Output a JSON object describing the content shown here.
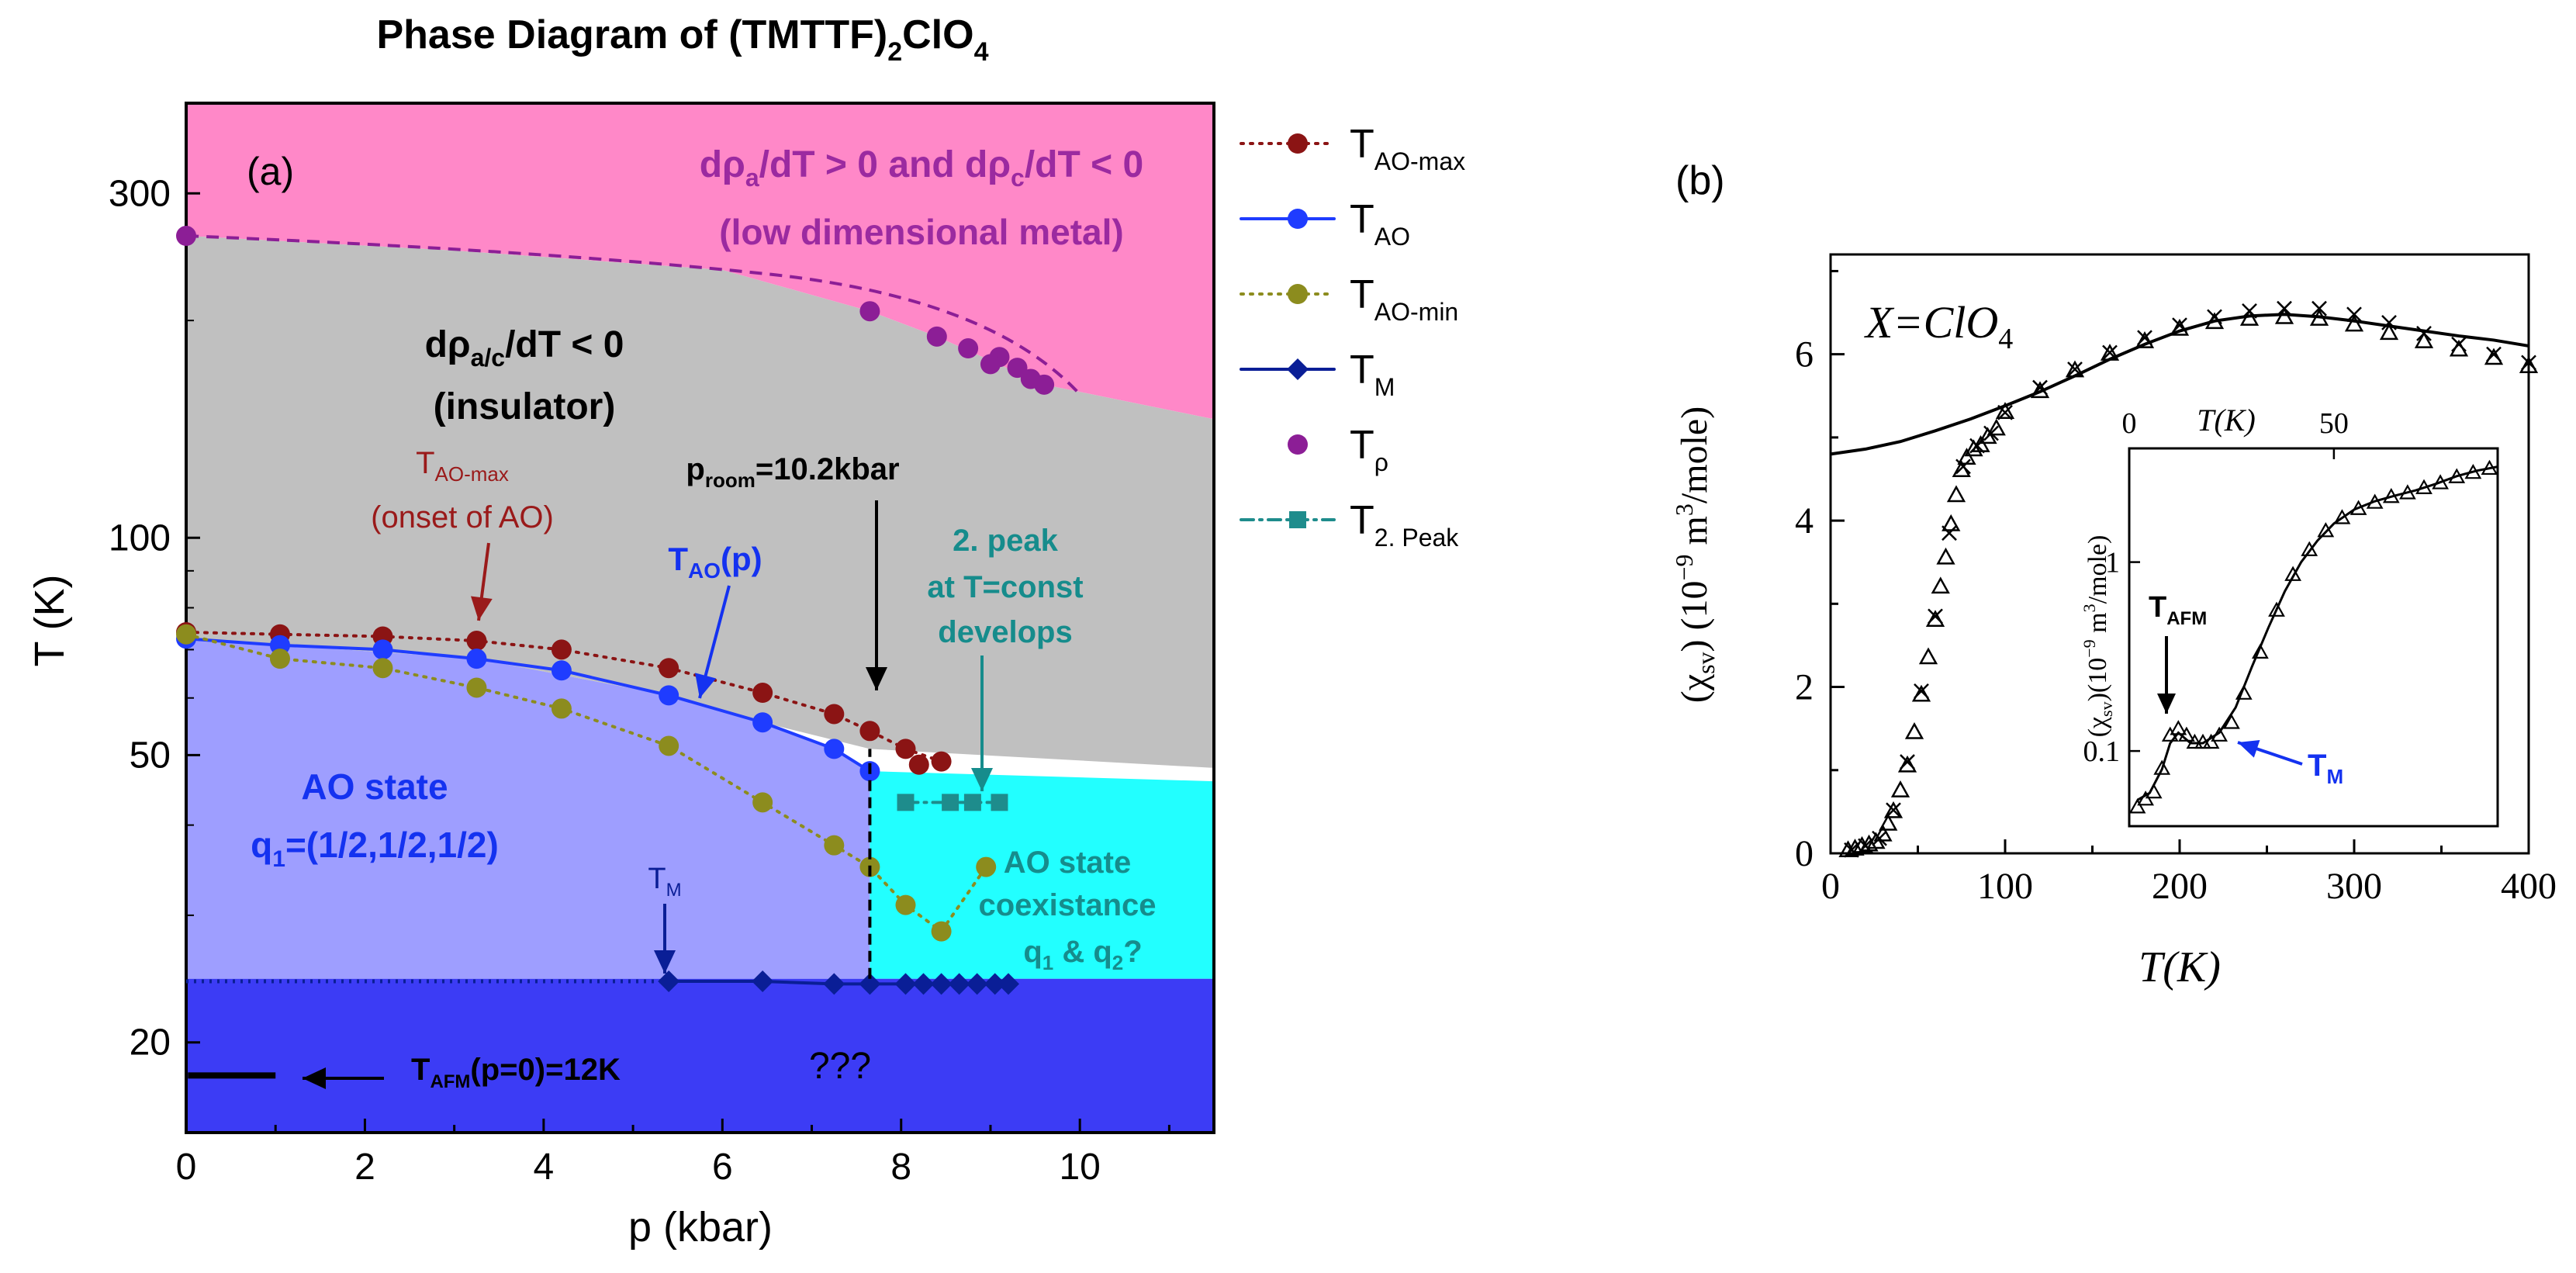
{
  "colors": {
    "metal": "#ff88c8",
    "insulator": "#c0c0c0",
    "ao_state": "#9e9eff",
    "coexist": "#22ffff",
    "afm": "#3c3cf5",
    "ao_max": "#8b1414",
    "ao": "#1f3cff",
    "ao_min": "#8c8c1e",
    "tm": "#0a1e96",
    "trho": "#8c1e96",
    "t2peak": "#1e8c8c",
    "metal_text": "#9b2aa0",
    "ao_text": "#1432f0",
    "teal_text": "#168c8c",
    "red_text": "#9a1a1a"
  },
  "chart_data": [
    {
      "id": "a",
      "type": "scatter",
      "panel_label": "(a)",
      "title": {
        "main": "Phase Diagram of (TMTTF)",
        "sub1": "2",
        "mid": "ClO",
        "sub2": "4"
      },
      "xlabel": "p (kbar)",
      "ylabel": "T (K)",
      "xlim": [
        0,
        11.5
      ],
      "ylim": [
        15,
        400
      ],
      "yscale": "log",
      "xticks": [
        0,
        2,
        4,
        6,
        8,
        10
      ],
      "yticks": [
        20,
        50,
        100,
        300
      ],
      "series": [
        {
          "key": "ao_max",
          "name": "T",
          "sub": "AO-max",
          "line": "dotted",
          "marker": "circle",
          "points": [
            [
              0,
              74
            ],
            [
              1.05,
              73.5
            ],
            [
              2.2,
              73
            ],
            [
              3.25,
              72
            ],
            [
              4.2,
              70
            ],
            [
              5.4,
              66
            ],
            [
              6.45,
              61
            ],
            [
              7.25,
              57
            ],
            [
              7.65,
              54
            ],
            [
              8.05,
              51
            ],
            [
              8.45,
              49
            ],
            [
              8.2,
              48.5
            ]
          ]
        },
        {
          "key": "ao",
          "name": "T",
          "sub": "AO",
          "line": "solid",
          "marker": "circle",
          "points": [
            [
              0,
              72.5
            ],
            [
              1.05,
              71
            ],
            [
              2.2,
              70
            ],
            [
              3.25,
              68
            ],
            [
              4.2,
              65.5
            ],
            [
              5.4,
              60.5
            ],
            [
              6.45,
              55.5
            ],
            [
              7.25,
              51
            ],
            [
              7.65,
              47.5
            ]
          ]
        },
        {
          "key": "ao_min",
          "name": "T",
          "sub": "AO-min",
          "line": "dotted",
          "marker": "circle",
          "points": [
            [
              0,
              73.5
            ],
            [
              1.05,
              68
            ],
            [
              2.2,
              66
            ],
            [
              3.25,
              62
            ],
            [
              4.2,
              58
            ],
            [
              5.4,
              51.5
            ],
            [
              6.45,
              43
            ],
            [
              7.25,
              37.5
            ],
            [
              7.65,
              35
            ],
            [
              8.05,
              31
            ],
            [
              8.45,
              28.5
            ],
            [
              8.95,
              35
            ]
          ]
        },
        {
          "key": "tm",
          "name": "T",
          "sub": "M",
          "line": "solid",
          "marker": "diamond",
          "points": [
            [
              5.4,
              24.3
            ],
            [
              6.45,
              24.3
            ],
            [
              7.25,
              24.1
            ],
            [
              7.65,
              24.1
            ],
            [
              8.05,
              24.1
            ],
            [
              8.25,
              24.1
            ],
            [
              8.45,
              24.1
            ],
            [
              8.65,
              24.1
            ],
            [
              8.85,
              24.1
            ],
            [
              9.05,
              24.1
            ],
            [
              9.2,
              24.1
            ]
          ]
        },
        {
          "key": "trho",
          "name": "T",
          "sub": "ρ",
          "line": "none",
          "marker": "circle",
          "points": [
            [
              0,
              262
            ],
            [
              7.65,
              206
            ],
            [
              8.4,
              190
            ],
            [
              8.75,
              183
            ],
            [
              9.1,
              178
            ],
            [
              9.3,
              172
            ],
            [
              9.0,
              174
            ],
            [
              9.45,
              166
            ],
            [
              9.6,
              163
            ]
          ]
        },
        {
          "key": "t2peak",
          "name": "T",
          "sub": "2. Peak",
          "line": "dashdot",
          "marker": "square",
          "points": [
            [
              8.05,
              43
            ],
            [
              8.55,
              43
            ],
            [
              8.8,
              43
            ],
            [
              9.1,
              43
            ]
          ]
        }
      ],
      "annotations": {
        "metal_line1": "dρ",
        "metal_sub_a": "a",
        "metal_mid": "/dT > 0 and dρ",
        "metal_sub_c": "c",
        "metal_end": "/dT < 0",
        "metal_line2": "(low dimensional metal)",
        "ins_line1": "dρ",
        "ins_sub": "a/c",
        "ins_end": "/dT < 0",
        "ins_line2": "(insulator)",
        "aomax_T": "T",
        "aomax_sub": "AO-max",
        "aomax_line2": "(onset of AO)",
        "prm_p": "p",
        "prm_sub": "room",
        "prm_val": "=10.2kbar",
        "tao_T": "T",
        "tao_sub": "AO",
        "tao_end": "(p)",
        "peak_line1": "2. peak",
        "peak_line2": "at T=const",
        "peak_line3": "develops",
        "aostate_line1": "AO state",
        "aostate_q": "q",
        "aostate_q_sub": "1",
        "aostate_q_val": "=(1/2,1/2,1/2)",
        "tm_T": "T",
        "tm_sub": "M",
        "coex_line1": "AO state",
        "coex_line2": "coexistance",
        "coex_q1": "q",
        "coex_q1_sub": "1",
        "coex_amp": " & q",
        "coex_q2_sub": "2",
        "coex_end": "?",
        "qqq": "???",
        "tafm_T": "T",
        "tafm_sub": "AFM",
        "tafm_end": "(p=0)=12K"
      }
    },
    {
      "id": "b",
      "type": "scatter",
      "panel_label": "(b)",
      "xlabel": "T(K)",
      "ylabel_main": "(χ",
      "ylabel_sub": "s",
      "ylabel_sub2": "v",
      "ylabel_rest": ")  (10",
      "ylabel_exp": "−9",
      "ylabel_unit": " m",
      "ylabel_exp2": "3",
      "ylabel_end": "/mole)",
      "xlim": [
        0,
        400
      ],
      "ylim": [
        0,
        7.2
      ],
      "xticks": [
        0,
        100,
        200,
        300,
        400
      ],
      "yticks": [
        0,
        2,
        4,
        6
      ],
      "x_label_text": "X=ClO",
      "x_label_sub": "4",
      "fit_curve": [
        [
          0,
          4.8
        ],
        [
          20,
          4.86
        ],
        [
          40,
          4.95
        ],
        [
          60,
          5.08
        ],
        [
          80,
          5.22
        ],
        [
          100,
          5.38
        ],
        [
          120,
          5.55
        ],
        [
          140,
          5.74
        ],
        [
          160,
          5.94
        ],
        [
          180,
          6.12
        ],
        [
          200,
          6.28
        ],
        [
          220,
          6.4
        ],
        [
          240,
          6.46
        ],
        [
          260,
          6.48
        ],
        [
          280,
          6.45
        ],
        [
          300,
          6.4
        ],
        [
          320,
          6.34
        ],
        [
          340,
          6.28
        ],
        [
          360,
          6.22
        ],
        [
          380,
          6.17
        ],
        [
          400,
          6.1
        ]
      ],
      "triangles": [
        [
          10,
          0.03
        ],
        [
          14,
          0.05
        ],
        [
          18,
          0.08
        ],
        [
          22,
          0.1
        ],
        [
          26,
          0.13
        ],
        [
          30,
          0.22
        ],
        [
          33,
          0.35
        ],
        [
          36,
          0.5
        ],
        [
          40,
          0.75
        ],
        [
          44,
          1.05
        ],
        [
          48,
          1.45
        ],
        [
          52,
          1.9
        ],
        [
          56,
          2.35
        ],
        [
          60,
          2.8
        ],
        [
          63,
          3.2
        ],
        [
          66,
          3.55
        ],
        [
          69,
          3.95
        ],
        [
          72,
          4.3
        ],
        [
          75,
          4.6
        ],
        [
          78,
          4.75
        ],
        [
          82,
          4.85
        ],
        [
          86,
          4.9
        ],
        [
          90,
          5.0
        ],
        [
          95,
          5.1
        ],
        [
          100,
          5.3
        ],
        [
          120,
          5.55
        ],
        [
          140,
          5.8
        ],
        [
          160,
          6.0
        ],
        [
          180,
          6.15
        ],
        [
          200,
          6.3
        ],
        [
          220,
          6.38
        ],
        [
          240,
          6.42
        ],
        [
          260,
          6.44
        ],
        [
          280,
          6.42
        ],
        [
          300,
          6.35
        ],
        [
          320,
          6.25
        ],
        [
          340,
          6.15
        ],
        [
          360,
          6.05
        ],
        [
          380,
          5.95
        ],
        [
          400,
          5.85
        ]
      ],
      "crosses": [
        [
          12,
          0.04
        ],
        [
          20,
          0.09
        ],
        [
          28,
          0.18
        ],
        [
          36,
          0.52
        ],
        [
          44,
          1.1
        ],
        [
          52,
          1.95
        ],
        [
          60,
          2.85
        ],
        [
          68,
          3.85
        ],
        [
          76,
          4.65
        ],
        [
          84,
          4.9
        ],
        [
          92,
          5.05
        ],
        [
          100,
          5.3
        ],
        [
          120,
          5.6
        ],
        [
          140,
          5.82
        ],
        [
          160,
          6.02
        ],
        [
          180,
          6.2
        ],
        [
          200,
          6.35
        ],
        [
          220,
          6.45
        ],
        [
          240,
          6.52
        ],
        [
          260,
          6.55
        ],
        [
          280,
          6.55
        ],
        [
          300,
          6.48
        ],
        [
          320,
          6.38
        ],
        [
          340,
          6.25
        ],
        [
          360,
          6.12
        ],
        [
          380,
          6.0
        ],
        [
          400,
          5.9
        ]
      ],
      "inset": {
        "xlabel": "T(K)",
        "ylabel_main": "(χ",
        "ylabel_sub": "s",
        "ylabel_sub2": "v",
        "ylabel_rest": ")(10",
        "ylabel_exp": "−9",
        "ylabel_unit": " m",
        "ylabel_exp2": "3",
        "ylabel_end": "/mole)",
        "xticks": [
          0,
          50
        ],
        "yticks": [
          0.1,
          1
        ],
        "xlim": [
          0,
          90
        ],
        "ylim": [
          0.04,
          4
        ],
        "yscale": "log",
        "curve": [
          [
            2,
            0.055
          ],
          [
            5,
            0.06
          ],
          [
            8,
            0.08
          ],
          [
            10,
            0.11
          ],
          [
            12,
            0.125
          ],
          [
            15,
            0.11
          ],
          [
            18,
            0.11
          ],
          [
            22,
            0.125
          ],
          [
            26,
            0.17
          ],
          [
            30,
            0.28
          ],
          [
            34,
            0.45
          ],
          [
            38,
            0.7
          ],
          [
            42,
            1.0
          ],
          [
            46,
            1.3
          ],
          [
            50,
            1.6
          ],
          [
            55,
            1.9
          ],
          [
            60,
            2.1
          ],
          [
            65,
            2.25
          ],
          [
            70,
            2.4
          ],
          [
            75,
            2.6
          ],
          [
            80,
            2.85
          ],
          [
            85,
            3.05
          ],
          [
            90,
            3.2
          ]
        ],
        "points": [
          [
            2,
            0.05
          ],
          [
            4,
            0.055
          ],
          [
            6,
            0.06
          ],
          [
            8,
            0.08
          ],
          [
            10,
            0.12
          ],
          [
            12,
            0.13
          ],
          [
            14,
            0.12
          ],
          [
            16,
            0.11
          ],
          [
            18,
            0.11
          ],
          [
            20,
            0.11
          ],
          [
            22,
            0.12
          ],
          [
            25,
            0.14
          ],
          [
            28,
            0.2
          ],
          [
            32,
            0.33
          ],
          [
            36,
            0.55
          ],
          [
            40,
            0.85
          ],
          [
            44,
            1.15
          ],
          [
            48,
            1.45
          ],
          [
            52,
            1.7
          ],
          [
            56,
            1.9
          ],
          [
            60,
            2.05
          ],
          [
            64,
            2.2
          ],
          [
            68,
            2.3
          ],
          [
            72,
            2.45
          ],
          [
            76,
            2.6
          ],
          [
            80,
            2.8
          ],
          [
            84,
            2.95
          ],
          [
            88,
            3.1
          ]
        ],
        "tafm_T": "T",
        "tafm_sub": "AFM",
        "tm_T": "T",
        "tm_sub": "M"
      }
    }
  ]
}
